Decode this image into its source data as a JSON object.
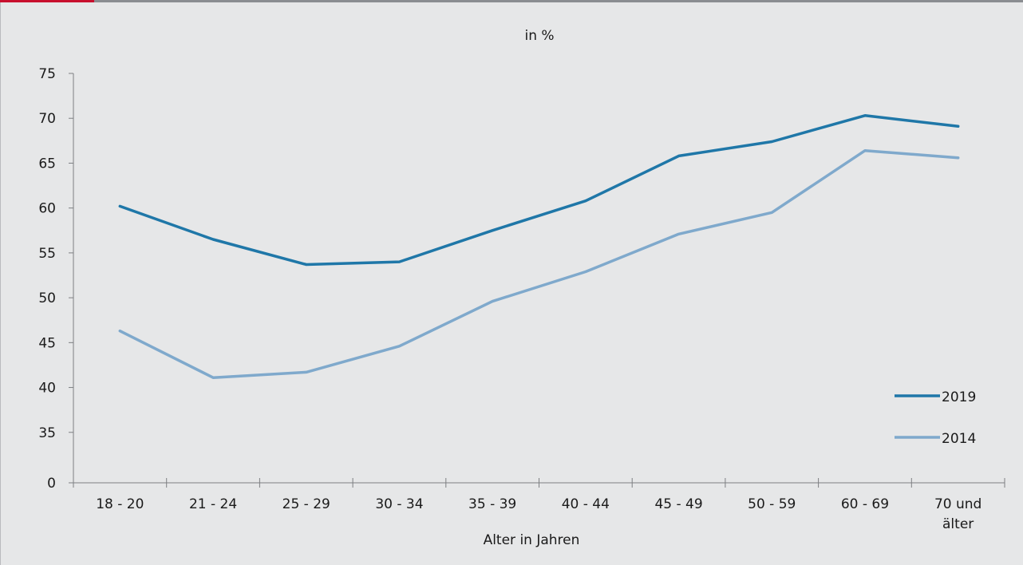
{
  "chart_data": {
    "type": "line",
    "title": "in %",
    "xlabel": "Alter in Jahren",
    "ylabel": "",
    "categories": [
      "18 - 20",
      "21 - 24",
      "25 - 29",
      "30 - 34",
      "35 - 39",
      "40 - 44",
      "45 - 49",
      "50 - 59",
      "60 - 69",
      "70 und älter"
    ],
    "category_lines": [
      [
        "18 - 20"
      ],
      [
        "21 - 24"
      ],
      [
        "25 - 29"
      ],
      [
        "30 - 34"
      ],
      [
        "35 - 39"
      ],
      [
        "40 - 44"
      ],
      [
        "45 - 49"
      ],
      [
        "50 - 59"
      ],
      [
        "60 - 69"
      ],
      [
        "70 und",
        "älter"
      ]
    ],
    "y_ticks": [
      "0",
      "35",
      "40",
      "45",
      "50",
      "55",
      "60",
      "65",
      "70",
      "75"
    ],
    "ylim": [
      30,
      75
    ],
    "y_axis_break": "0 shown at bottom, axis starts effectively at 30",
    "series": [
      {
        "name": "2019",
        "color": "#1f77a8",
        "values": [
          60.2,
          56.5,
          53.7,
          54.0,
          57.5,
          60.8,
          65.8,
          67.4,
          70.3,
          69.1
        ]
      },
      {
        "name": "2014",
        "color": "#7fa9cc",
        "values": [
          46.3,
          41.1,
          41.7,
          44.6,
          49.6,
          52.9,
          57.1,
          59.5,
          66.4,
          65.6
        ]
      }
    ],
    "legend_position": "bottom-right",
    "grid": false
  }
}
